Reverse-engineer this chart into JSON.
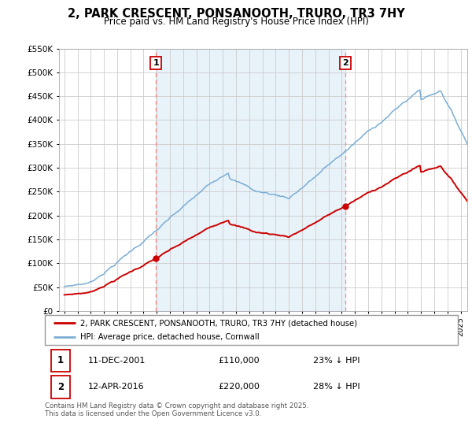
{
  "title": "2, PARK CRESCENT, PONSANOOTH, TRURO, TR3 7HY",
  "subtitle": "Price paid vs. HM Land Registry's House Price Index (HPI)",
  "legend_line1": "2, PARK CRESCENT, PONSANOOTH, TRURO, TR3 7HY (detached house)",
  "legend_line2": "HPI: Average price, detached house, Cornwall",
  "annotation1_date": "11-DEC-2001",
  "annotation1_price": "£110,000",
  "annotation1_hpi": "23% ↓ HPI",
  "annotation2_date": "12-APR-2016",
  "annotation2_price": "£220,000",
  "annotation2_hpi": "28% ↓ HPI",
  "footnote": "Contains HM Land Registry data © Crown copyright and database right 2025.\nThis data is licensed under the Open Government Licence v3.0.",
  "hpi_color": "#7aadd4",
  "price_color": "#cc0000",
  "vline_color": "#ff8888",
  "annotation_box_color": "#cc0000",
  "fill_color": "#d6e8f5",
  "sale1_x": 2001.94,
  "sale1_y": 110000,
  "sale2_x": 2016.28,
  "sale2_y": 220000,
  "ylim": [
    0,
    550000
  ],
  "xlim": [
    1994.6,
    2025.5
  ]
}
